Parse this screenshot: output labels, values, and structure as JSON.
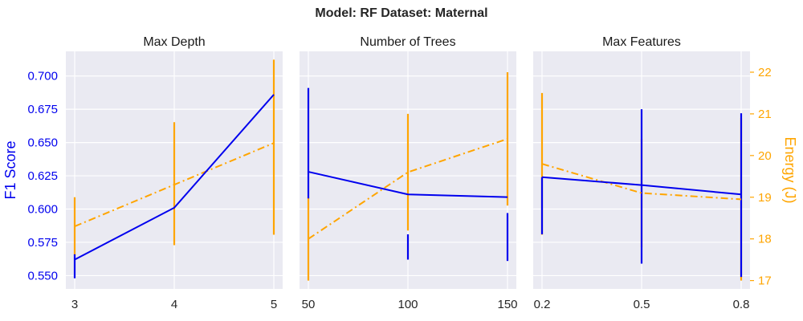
{
  "figure_title": "Model: RF Dataset: Maternal",
  "colors": {
    "f1": "#0000ee",
    "energy": "#ffa500",
    "panel_bg": "#eaeaf2",
    "grid": "#ffffff"
  },
  "chart_data": {
    "type": "line",
    "left_axis": {
      "label": "F1 Score",
      "ylim": [
        0.54,
        0.7185
      ],
      "ticks": [
        "0.550",
        "0.575",
        "0.600",
        "0.625",
        "0.650",
        "0.675",
        "0.700"
      ],
      "tick_values": [
        0.55,
        0.575,
        0.6,
        0.625,
        0.65,
        0.675,
        0.7
      ]
    },
    "right_axis": {
      "label": "Energy (J)",
      "ylim": [
        16.8,
        22.5
      ],
      "ticks": [
        "17",
        "18",
        "19",
        "20",
        "21",
        "22"
      ],
      "tick_values": [
        17,
        18,
        19,
        20,
        21,
        22
      ]
    },
    "grid": true,
    "panels": [
      {
        "title": "Max Depth",
        "categories": [
          "3",
          "4",
          "5"
        ],
        "series": [
          {
            "metric": "f1",
            "axis": "left",
            "style": "solid",
            "values": [
              0.562,
              0.601,
              0.686
            ],
            "err_low": [
              0.548,
              0.601,
              0.686
            ],
            "err_high": [
              0.566,
              0.601,
              0.686
            ]
          },
          {
            "metric": "energy",
            "axis": "right",
            "style": "dashdot",
            "values": [
              18.3,
              19.3,
              20.3
            ],
            "err_low": [
              17.6,
              17.85,
              18.1
            ],
            "err_high": [
              19.0,
              20.8,
              22.3
            ]
          }
        ]
      },
      {
        "title": "Number of Trees",
        "categories": [
          "50",
          "100",
          "150"
        ],
        "series": [
          {
            "metric": "f1",
            "axis": "left",
            "style": "solid",
            "values": [
              0.628,
              0.611,
              0.609
            ],
            "err_low": [
              0.608,
              0.562,
              0.561
            ],
            "err_high": [
              0.691,
              0.581,
              0.597
            ]
          },
          {
            "metric": "energy",
            "axis": "right",
            "style": "dashdot",
            "values": [
              18.0,
              19.6,
              20.4
            ],
            "err_low": [
              17.0,
              18.2,
              18.8
            ],
            "err_high": [
              19.0,
              21.0,
              22.0
            ]
          }
        ]
      },
      {
        "title": "Max Features",
        "categories": [
          "0.2",
          "0.5",
          "0.8"
        ],
        "series": [
          {
            "metric": "f1",
            "axis": "left",
            "style": "solid",
            "values": [
              0.624,
              0.618,
              0.611
            ],
            "err_low": [
              0.581,
              0.559,
              0.549
            ],
            "err_high": [
              0.624,
              0.675,
              0.672
            ]
          },
          {
            "metric": "energy",
            "axis": "right",
            "style": "dashdot",
            "values": [
              19.8,
              19.1,
              18.95
            ],
            "err_low": [
              18.1,
              17.8,
              17.0
            ],
            "err_high": [
              21.5,
              20.4,
              20.9
            ]
          }
        ]
      }
    ]
  }
}
